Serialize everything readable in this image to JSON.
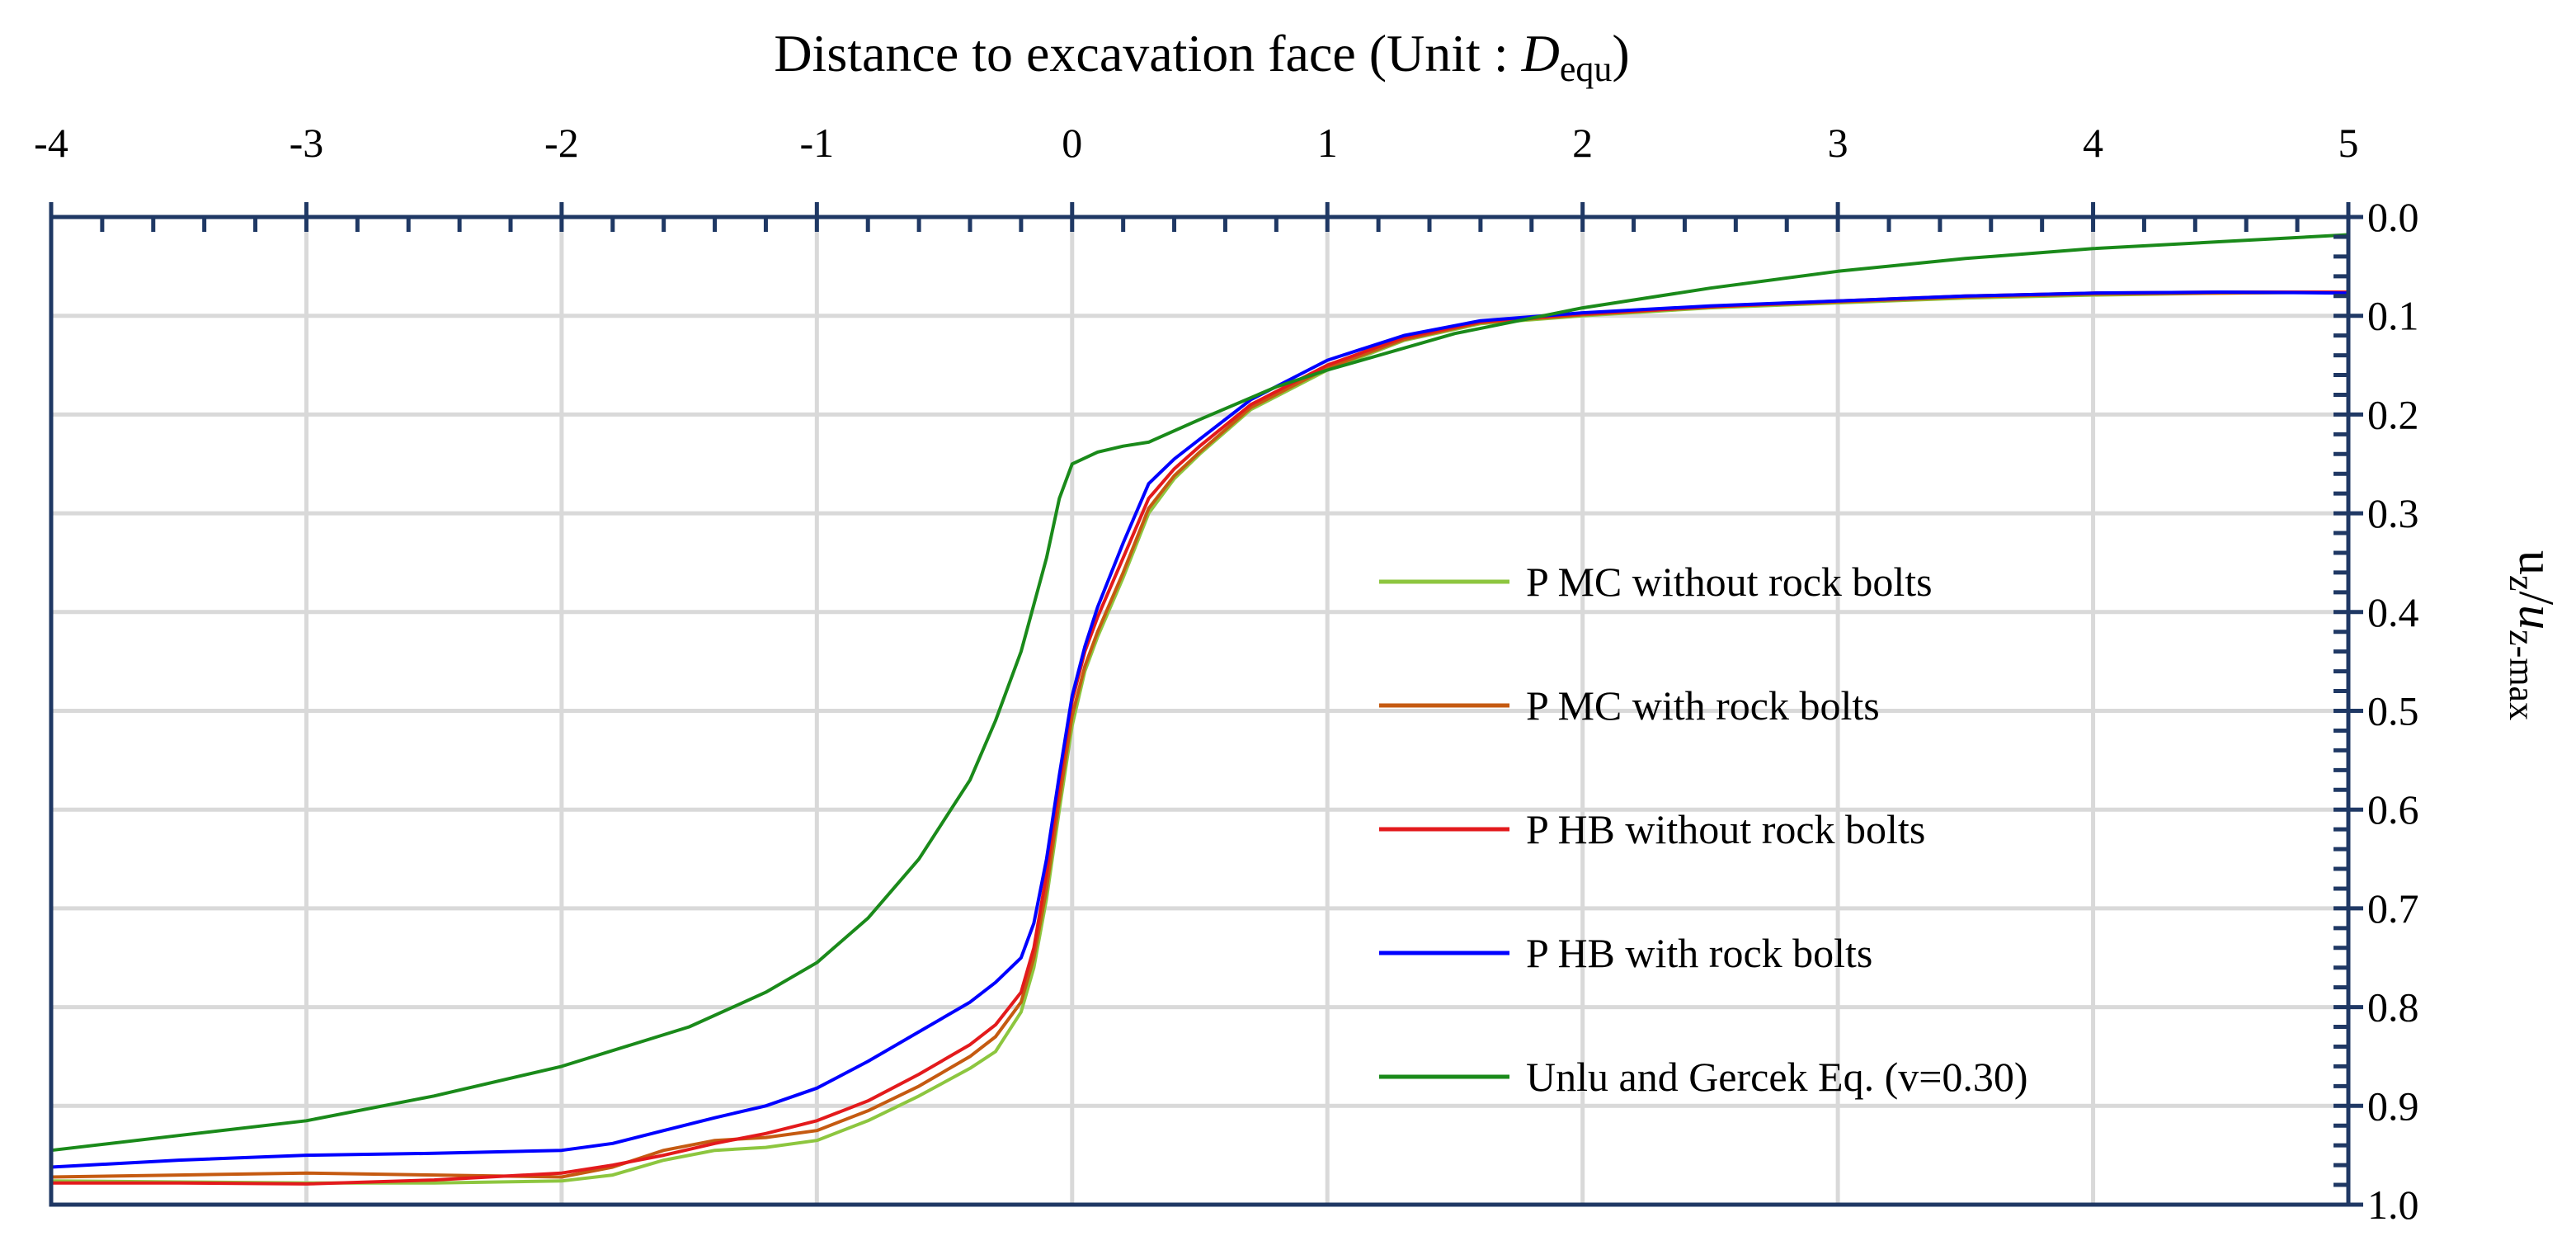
{
  "chart_data": {
    "type": "line",
    "title": {
      "text": "Distance to excavation face (Unit : ",
      "symbol": "D",
      "subscript": "equ",
      "close": ")"
    },
    "xlabel": "Distance to excavation face (Unit : Dequ)",
    "ylabel": {
      "main": "u",
      "sub1": "z",
      "slash": "/",
      "main2": "u",
      "sub2": "z-max"
    },
    "xlim": [
      -4,
      5
    ],
    "ylim": [
      0.0,
      1.0
    ],
    "y_inverted": true,
    "x_axis_position": "top",
    "y_axis_position": "right",
    "grid": true,
    "x_ticks": [
      -4,
      -3,
      -2,
      -1,
      0,
      1,
      2,
      3,
      4,
      5
    ],
    "x_tick_labels": [
      "-4",
      "-3",
      "-2",
      "-1",
      "0",
      "1",
      "2",
      "3",
      "4",
      "5"
    ],
    "y_ticks": [
      0.0,
      0.1,
      0.2,
      0.3,
      0.4,
      0.5,
      0.6,
      0.7,
      0.8,
      0.9,
      1.0
    ],
    "y_tick_labels": [
      "0.0",
      "0.1",
      "0.2",
      "0.3",
      "0.4",
      "0.5",
      "0.6",
      "0.7",
      "0.8",
      "0.9",
      "1.0"
    ],
    "legend_position": "center-right",
    "series": [
      {
        "name": "P MC without rock bolts",
        "color": "#8dc63f",
        "points": [
          [
            -4,
            0.976
          ],
          [
            -3.5,
            0.977
          ],
          [
            -3,
            0.978
          ],
          [
            -2.5,
            0.978
          ],
          [
            -2,
            0.976
          ],
          [
            -1.8,
            0.97
          ],
          [
            -1.6,
            0.955
          ],
          [
            -1.4,
            0.945
          ],
          [
            -1.2,
            0.942
          ],
          [
            -1,
            0.935
          ],
          [
            -0.8,
            0.915
          ],
          [
            -0.6,
            0.89
          ],
          [
            -0.4,
            0.862
          ],
          [
            -0.3,
            0.845
          ],
          [
            -0.2,
            0.805
          ],
          [
            -0.15,
            0.76
          ],
          [
            -0.1,
            0.69
          ],
          [
            -0.05,
            0.6
          ],
          [
            0,
            0.515
          ],
          [
            0.05,
            0.46
          ],
          [
            0.1,
            0.425
          ],
          [
            0.2,
            0.365
          ],
          [
            0.3,
            0.3
          ],
          [
            0.4,
            0.265
          ],
          [
            0.5,
            0.24
          ],
          [
            0.7,
            0.195
          ],
          [
            1,
            0.155
          ],
          [
            1.3,
            0.125
          ],
          [
            1.6,
            0.108
          ],
          [
            2,
            0.1
          ],
          [
            2.5,
            0.092
          ],
          [
            3,
            0.087
          ],
          [
            3.5,
            0.082
          ],
          [
            4,
            0.079
          ],
          [
            4.5,
            0.077
          ],
          [
            5,
            0.076
          ]
        ]
      },
      {
        "name": "P MC with rock bolts",
        "color": "#c55a11",
        "points": [
          [
            -4,
            0.972
          ],
          [
            -3.5,
            0.97
          ],
          [
            -3,
            0.968
          ],
          [
            -2.5,
            0.97
          ],
          [
            -2,
            0.972
          ],
          [
            -1.8,
            0.962
          ],
          [
            -1.6,
            0.945
          ],
          [
            -1.4,
            0.935
          ],
          [
            -1.2,
            0.932
          ],
          [
            -1,
            0.925
          ],
          [
            -0.8,
            0.905
          ],
          [
            -0.6,
            0.88
          ],
          [
            -0.4,
            0.85
          ],
          [
            -0.3,
            0.83
          ],
          [
            -0.2,
            0.795
          ],
          [
            -0.15,
            0.75
          ],
          [
            -0.1,
            0.68
          ],
          [
            -0.05,
            0.59
          ],
          [
            0,
            0.505
          ],
          [
            0.05,
            0.455
          ],
          [
            0.1,
            0.42
          ],
          [
            0.2,
            0.36
          ],
          [
            0.3,
            0.295
          ],
          [
            0.4,
            0.262
          ],
          [
            0.5,
            0.238
          ],
          [
            0.7,
            0.193
          ],
          [
            1,
            0.153
          ],
          [
            1.3,
            0.124
          ],
          [
            1.6,
            0.107
          ],
          [
            2,
            0.099
          ],
          [
            2.5,
            0.091
          ],
          [
            3,
            0.086
          ],
          [
            3.5,
            0.081
          ],
          [
            4,
            0.078
          ],
          [
            4.5,
            0.077
          ],
          [
            5,
            0.076
          ]
        ]
      },
      {
        "name": "P HB without rock bolts",
        "color": "#e31a1c",
        "points": [
          [
            -4,
            0.978
          ],
          [
            -3.5,
            0.978
          ],
          [
            -3,
            0.979
          ],
          [
            -2.5,
            0.975
          ],
          [
            -2,
            0.968
          ],
          [
            -1.8,
            0.96
          ],
          [
            -1.6,
            0.95
          ],
          [
            -1.4,
            0.938
          ],
          [
            -1.2,
            0.928
          ],
          [
            -1,
            0.915
          ],
          [
            -0.8,
            0.895
          ],
          [
            -0.6,
            0.868
          ],
          [
            -0.4,
            0.838
          ],
          [
            -0.3,
            0.818
          ],
          [
            -0.2,
            0.785
          ],
          [
            -0.15,
            0.74
          ],
          [
            -0.1,
            0.665
          ],
          [
            -0.05,
            0.575
          ],
          [
            0,
            0.49
          ],
          [
            0.05,
            0.44
          ],
          [
            0.1,
            0.405
          ],
          [
            0.2,
            0.345
          ],
          [
            0.3,
            0.285
          ],
          [
            0.4,
            0.255
          ],
          [
            0.5,
            0.232
          ],
          [
            0.7,
            0.19
          ],
          [
            1,
            0.15
          ],
          [
            1.3,
            0.122
          ],
          [
            1.6,
            0.106
          ],
          [
            2,
            0.098
          ],
          [
            2.5,
            0.091
          ],
          [
            3,
            0.085
          ],
          [
            3.5,
            0.08
          ],
          [
            4,
            0.077
          ],
          [
            4.5,
            0.076
          ],
          [
            5,
            0.076
          ]
        ]
      },
      {
        "name": "P HB with rock bolts",
        "color": "#0000ff",
        "points": [
          [
            -4,
            0.962
          ],
          [
            -3.5,
            0.955
          ],
          [
            -3,
            0.95
          ],
          [
            -2.5,
            0.948
          ],
          [
            -2,
            0.945
          ],
          [
            -1.8,
            0.938
          ],
          [
            -1.6,
            0.925
          ],
          [
            -1.4,
            0.912
          ],
          [
            -1.2,
            0.9
          ],
          [
            -1,
            0.882
          ],
          [
            -0.8,
            0.855
          ],
          [
            -0.6,
            0.825
          ],
          [
            -0.4,
            0.795
          ],
          [
            -0.3,
            0.775
          ],
          [
            -0.2,
            0.75
          ],
          [
            -0.15,
            0.715
          ],
          [
            -0.1,
            0.65
          ],
          [
            -0.05,
            0.565
          ],
          [
            0,
            0.485
          ],
          [
            0.05,
            0.435
          ],
          [
            0.1,
            0.395
          ],
          [
            0.2,
            0.33
          ],
          [
            0.3,
            0.27
          ],
          [
            0.4,
            0.245
          ],
          [
            0.5,
            0.225
          ],
          [
            0.7,
            0.185
          ],
          [
            1,
            0.145
          ],
          [
            1.3,
            0.12
          ],
          [
            1.6,
            0.105
          ],
          [
            2,
            0.097
          ],
          [
            2.5,
            0.09
          ],
          [
            3,
            0.085
          ],
          [
            3.5,
            0.08
          ],
          [
            4,
            0.077
          ],
          [
            4.5,
            0.076
          ],
          [
            5,
            0.077
          ]
        ]
      },
      {
        "name": "Unlu and Gercek Eq. (v=0.30)",
        "color": "#1a8a1a",
        "points": [
          [
            -4,
            0.945
          ],
          [
            -3.5,
            0.93
          ],
          [
            -3,
            0.915
          ],
          [
            -2.5,
            0.89
          ],
          [
            -2,
            0.86
          ],
          [
            -1.5,
            0.82
          ],
          [
            -1.2,
            0.785
          ],
          [
            -1,
            0.755
          ],
          [
            -0.8,
            0.71
          ],
          [
            -0.6,
            0.65
          ],
          [
            -0.4,
            0.57
          ],
          [
            -0.3,
            0.51
          ],
          [
            -0.2,
            0.44
          ],
          [
            -0.1,
            0.345
          ],
          [
            -0.05,
            0.285
          ],
          [
            0,
            0.25
          ],
          [
            0.1,
            0.238
          ],
          [
            0.2,
            0.232
          ],
          [
            0.3,
            0.228
          ],
          [
            0.5,
            0.205
          ],
          [
            0.8,
            0.172
          ],
          [
            1,
            0.155
          ],
          [
            1.5,
            0.118
          ],
          [
            2,
            0.092
          ],
          [
            2.5,
            0.072
          ],
          [
            3,
            0.055
          ],
          [
            3.5,
            0.042
          ],
          [
            4,
            0.032
          ],
          [
            4.5,
            0.025
          ],
          [
            5,
            0.018
          ]
        ]
      }
    ]
  }
}
